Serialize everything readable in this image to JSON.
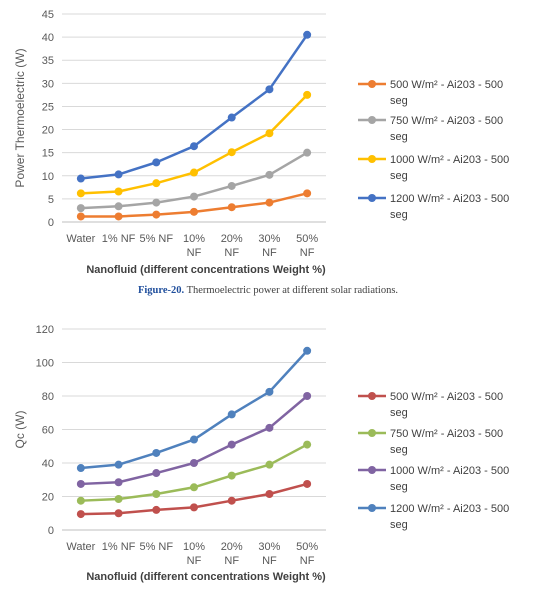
{
  "caption": {
    "label": "Figure-20.",
    "text": " Thermoelectric power at different solar radiations."
  },
  "chart_data": [
    {
      "type": "line",
      "ylabel": "Power Thermoelectric (W)",
      "xlabel": "Nanofluid (different concentrations Weight %)",
      "categories": [
        "Water",
        "1% NF",
        "5% NF",
        "10% NF",
        "20% NF",
        "30% NF",
        "50% NF"
      ],
      "ylim": [
        0,
        45
      ],
      "yticks": [
        0,
        5,
        10,
        15,
        20,
        25,
        30,
        35,
        40,
        45
      ],
      "grid": true,
      "legend": "right",
      "series": [
        {
          "name": "500 W/m² - Ai203 - 500 seg",
          "color": "#ED7D31",
          "values": [
            1.2,
            1.2,
            1.6,
            2.2,
            3.2,
            4.2,
            6.2
          ]
        },
        {
          "name": "750 W/m² - Ai203 - 500 seg",
          "color": "#A5A5A5",
          "values": [
            3.0,
            3.4,
            4.2,
            5.5,
            7.8,
            10.2,
            15.0
          ]
        },
        {
          "name": "1000 W/m² - Ai203 - 500 seg",
          "color": "#FFC000",
          "values": [
            6.2,
            6.6,
            8.4,
            10.7,
            15.1,
            19.2,
            27.5
          ]
        },
        {
          "name": "1200 W/m² - Ai203 - 500 seg",
          "color": "#4472C4",
          "values": [
            9.4,
            10.3,
            12.9,
            16.4,
            22.6,
            28.7,
            40.5
          ]
        }
      ]
    },
    {
      "type": "line",
      "ylabel": "Qc (W)",
      "xlabel": "Nanofluid (different concentrations Weight %)",
      "categories": [
        "Water",
        "1% NF",
        "5% NF",
        "10% NF",
        "20% NF",
        "30% NF",
        "50% NF"
      ],
      "ylim": [
        0,
        120
      ],
      "yticks": [
        0,
        20,
        40,
        60,
        80,
        100,
        120
      ],
      "grid": true,
      "legend": "right",
      "series": [
        {
          "name": "500 W/m² - Ai203 - 500 seg",
          "color": "#C0504D",
          "values": [
            9.5,
            10.0,
            12.0,
            13.5,
            17.5,
            21.5,
            27.5
          ]
        },
        {
          "name": "750 W/m² - Ai203 - 500 seg",
          "color": "#9BBB59",
          "values": [
            17.5,
            18.5,
            21.5,
            25.5,
            32.5,
            39.0,
            51.0
          ]
        },
        {
          "name": "1000 W/m² - Ai203 - 500 seg",
          "color": "#8064A2",
          "values": [
            27.5,
            28.5,
            34.0,
            40.0,
            51.0,
            61.0,
            80.0
          ]
        },
        {
          "name": "1200 W/m² - Ai203 - 500 seg",
          "color": "#4F81BD",
          "values": [
            37.0,
            39.0,
            46.0,
            54.0,
            69.0,
            82.5,
            107.0
          ]
        }
      ]
    }
  ]
}
